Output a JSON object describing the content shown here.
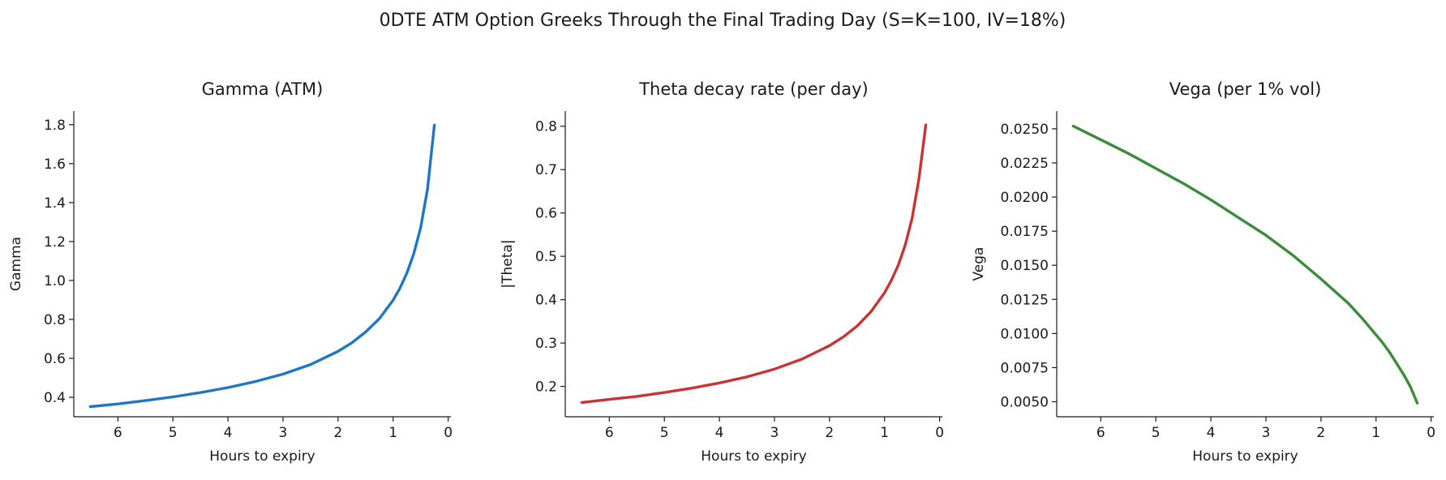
{
  "figure": {
    "title": "0DTE ATM Option Greeks Through the Final Trading Day (S=K=100, IV=18%)"
  },
  "chart_data": [
    {
      "type": "line",
      "title": "Gamma (ATM)",
      "xlabel": "Hours to expiry",
      "ylabel": "Gamma",
      "x_inverted": true,
      "xlim": [
        6.8,
        -0.05
      ],
      "ylim": [
        0.3,
        1.87
      ],
      "xticks": [
        6,
        5,
        4,
        3,
        2,
        1,
        0
      ],
      "xtick_labels": [
        "6",
        "5",
        "4",
        "3",
        "2",
        "1",
        "0"
      ],
      "yticks": [
        0.4,
        0.6,
        0.8,
        1.0,
        1.2,
        1.4,
        1.6,
        1.8
      ],
      "ytick_labels": [
        "0.4",
        "0.6",
        "0.8",
        "1.0",
        "1.2",
        "1.4",
        "1.6",
        "1.8"
      ],
      "grid": false,
      "color": "#1f77c4",
      "series": [
        {
          "x": [
            6.5,
            6.0,
            5.5,
            5.0,
            4.5,
            4.0,
            3.5,
            3.0,
            2.5,
            2.0,
            1.75,
            1.5,
            1.25,
            1.0,
            0.875,
            0.75,
            0.625,
            0.5,
            0.375,
            0.25
          ],
          "values": [
            0.352,
            0.366,
            0.383,
            0.402,
            0.424,
            0.45,
            0.481,
            0.519,
            0.568,
            0.636,
            0.68,
            0.735,
            0.804,
            0.899,
            0.961,
            1.038,
            1.137,
            1.271,
            1.468,
            1.798
          ]
        }
      ]
    },
    {
      "type": "line",
      "title": "Theta decay rate (per day)",
      "xlabel": "Hours to expiry",
      "ylabel": "|Theta|",
      "x_inverted": true,
      "xlim": [
        6.8,
        -0.05
      ],
      "ylim": [
        0.13,
        0.835
      ],
      "xticks": [
        6,
        5,
        4,
        3,
        2,
        1,
        0
      ],
      "xtick_labels": [
        "6",
        "5",
        "4",
        "3",
        "2",
        "1",
        "0"
      ],
      "yticks": [
        0.2,
        0.3,
        0.4,
        0.5,
        0.6,
        0.7,
        0.8
      ],
      "ytick_labels": [
        "0.2",
        "0.3",
        "0.4",
        "0.5",
        "0.6",
        "0.7",
        "0.8"
      ],
      "grid": false,
      "color": "#c83434",
      "series": [
        {
          "x": [
            6.5,
            6.0,
            5.5,
            5.0,
            4.5,
            4.0,
            3.5,
            3.0,
            2.5,
            2.0,
            1.75,
            1.5,
            1.25,
            1.0,
            0.875,
            0.75,
            0.625,
            0.5,
            0.375,
            0.25
          ],
          "values": [
            0.163,
            0.17,
            0.177,
            0.186,
            0.196,
            0.208,
            0.222,
            0.24,
            0.263,
            0.294,
            0.314,
            0.339,
            0.372,
            0.416,
            0.445,
            0.48,
            0.526,
            0.588,
            0.679,
            0.803
          ]
        }
      ]
    },
    {
      "type": "line",
      "title": "Vega (per 1% vol)",
      "xlabel": "Hours to expiry",
      "ylabel": "Vega",
      "x_inverted": true,
      "xlim": [
        6.8,
        -0.05
      ],
      "ylim": [
        0.0039,
        0.0263
      ],
      "xticks": [
        6,
        5,
        4,
        3,
        2,
        1,
        0
      ],
      "xtick_labels": [
        "6",
        "5",
        "4",
        "3",
        "2",
        "1",
        "0"
      ],
      "yticks": [
        0.005,
        0.0075,
        0.01,
        0.0125,
        0.015,
        0.0175,
        0.02,
        0.0225,
        0.025
      ],
      "ytick_labels": [
        "0.0050",
        "0.0075",
        "0.0100",
        "0.0125",
        "0.0150",
        "0.0175",
        "0.0200",
        "0.0225",
        "0.0250"
      ],
      "grid": false,
      "color": "#3a8c3a",
      "series": [
        {
          "x": [
            6.5,
            6.0,
            5.5,
            5.0,
            4.5,
            4.0,
            3.5,
            3.0,
            2.5,
            2.0,
            1.75,
            1.5,
            1.25,
            1.0,
            0.875,
            0.75,
            0.625,
            0.5,
            0.375,
            0.25
          ],
          "values": [
            0.0252,
            0.0242,
            0.0232,
            0.0221,
            0.021,
            0.0198,
            0.0185,
            0.0172,
            0.0157,
            0.014,
            0.0131,
            0.0122,
            0.0111,
            0.0099,
            0.0093,
            0.0086,
            0.0078,
            0.007,
            0.0061,
            0.0049
          ]
        }
      ]
    }
  ]
}
